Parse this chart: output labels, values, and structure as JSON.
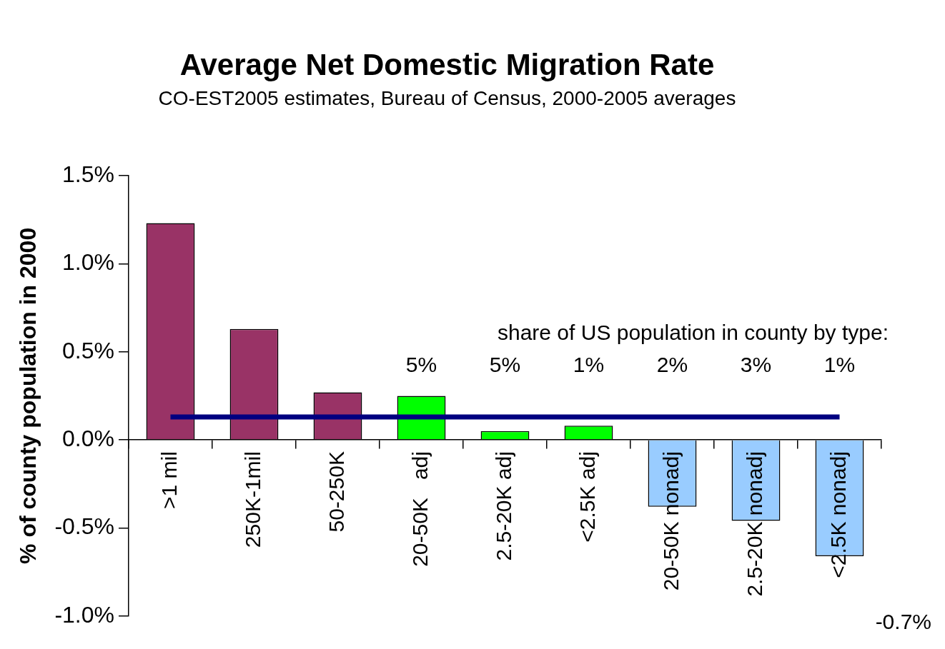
{
  "chart_data": {
    "type": "bar",
    "title": "Average Net Domestic Migration Rate",
    "subtitle": "CO-EST2005 estimates, Bureau of Census, 2000-2005 averages",
    "ylabel": "% of county population in 2000",
    "categories": [
      ">1 mil",
      "250K-1mil",
      "50-250K",
      "20-50K   adj",
      "2.5-20K adj",
      "<2.5K adj",
      "20-50K nonadj",
      "2.5-20K nonadj",
      "<2.5K nonadj"
    ],
    "values": [
      1.23,
      0.63,
      0.27,
      0.25,
      0.05,
      0.08,
      -0.38,
      -0.46,
      -0.66
    ],
    "colors": [
      "#993366",
      "#993366",
      "#993366",
      "#00ff00",
      "#00ff00",
      "#00ff00",
      "#99ccff",
      "#99ccff",
      "#99ccff"
    ],
    "ylim": [
      -1,
      1.5
    ],
    "yticks": [
      {
        "value": -1,
        "label": "-1.0%"
      },
      {
        "value": -0.5,
        "label": "-0.5%"
      },
      {
        "value": 0,
        "label": "0.0%"
      },
      {
        "value": 0.5,
        "label": "0.5%"
      },
      {
        "value": 1,
        "label": "1.0%"
      },
      {
        "value": 1.5,
        "label": "1.5%"
      }
    ],
    "ref_lines": [
      {
        "axis": "y",
        "value": 0.13,
        "color": "#000080"
      }
    ],
    "annotations": [
      "share of US population in county by type:",
      "5%",
      "5%",
      "1%",
      "2%",
      "3%",
      "1%",
      "-0.7%"
    ],
    "grid": false,
    "legend": false
  }
}
